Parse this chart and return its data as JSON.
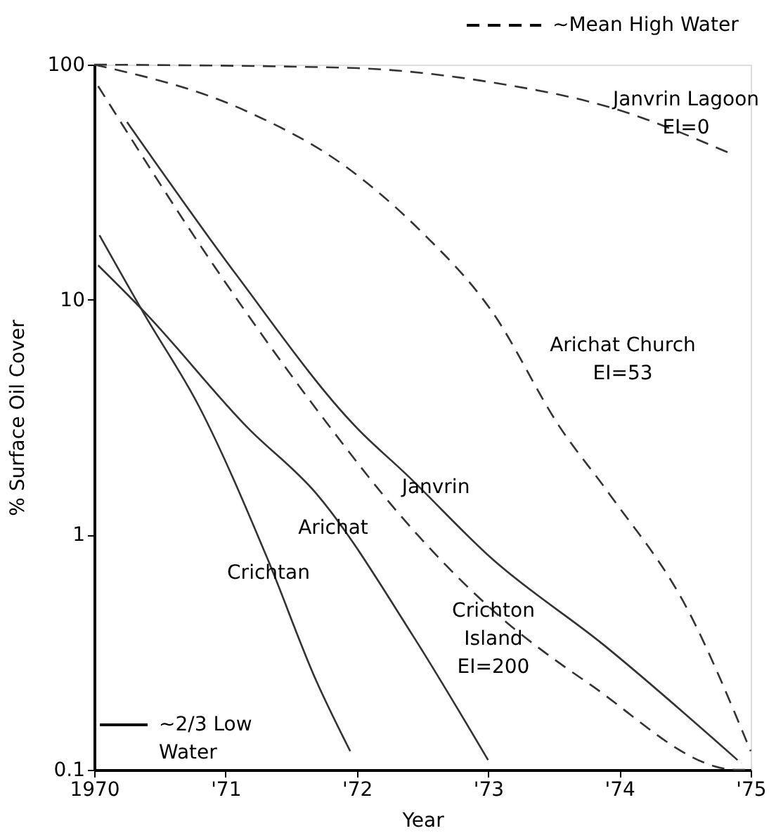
{
  "chart_data": {
    "type": "line",
    "xlabel": "Year",
    "ylabel": "% Surface Oil Cover",
    "log": "y",
    "xlim": [
      1970,
      1975
    ],
    "xticks": [
      {
        "value": 1970,
        "label": "1970"
      },
      {
        "value": 1971,
        "label": "'71"
      },
      {
        "value": 1972,
        "label": "'72"
      },
      {
        "value": 1973,
        "label": "'73"
      },
      {
        "value": 1974,
        "label": "'74"
      },
      {
        "value": 1975,
        "label": "'75"
      }
    ],
    "ylim": [
      0.1,
      100
    ],
    "yticks": [
      {
        "value": 100,
        "label": "100"
      },
      {
        "value": 10,
        "label": "10"
      },
      {
        "value": 1,
        "label": "1"
      },
      {
        "value": 0.1,
        "label": "0.1"
      }
    ],
    "grid": false,
    "marker": "none",
    "series": [
      {
        "name": "Janvrin Lagoon\nEI=0",
        "color": "#333333",
        "line_style": "dashed",
        "x": [
          1970,
          1971.91,
          1973.03,
          1973.96,
          1974.84
        ],
        "values": [
          100,
          97,
          84,
          65,
          42
        ]
      },
      {
        "name": "Arichat Church\nEI=53",
        "color": "#333333",
        "line_style": "dashed",
        "x": [
          1970,
          1971.17,
          1971.91,
          1972.47,
          1973.03,
          1973.55,
          1973.92,
          1974.52,
          1975
        ],
        "values": [
          100,
          63,
          37,
          20,
          8.9,
          2.85,
          1.5,
          0.48,
          0.12
        ]
      },
      {
        "name": "Crichton\nIsland\nEI=200",
        "color": "#333333",
        "line_style": "dashed",
        "x": [
          1970.03,
          1970.91,
          1971.8,
          1972.32,
          1973.03,
          1973.78,
          1974.9,
          1975
        ],
        "values": [
          81,
          14,
          2.85,
          1.23,
          0.48,
          0.23,
          0.1,
          0.1
        ]
      },
      {
        "name": "Janvrin",
        "color": "#333333",
        "line_style": "solid",
        "x": [
          1970.25,
          1971.09,
          1972.0,
          1972.38,
          1973.03,
          1973.88,
          1974.9
        ],
        "values": [
          57,
          12.6,
          2.85,
          1.8,
          0.79,
          0.34,
          0.11
        ]
      },
      {
        "name": "Arichat",
        "color": "#333333",
        "line_style": "solid",
        "x": [
          1970.03,
          1970.38,
          1971.17,
          1971.69,
          1972.43,
          1973.0
        ],
        "values": [
          14,
          8.9,
          2.85,
          1.5,
          0.37,
          0.11
        ]
      },
      {
        "name": "Crichtan",
        "color": "#333333",
        "line_style": "solid",
        "x": [
          1970.04,
          1970.38,
          1970.8,
          1971.32,
          1971.69,
          1971.95
        ],
        "values": [
          18.8,
          8.7,
          3.5,
          0.79,
          0.24,
          0.12
        ]
      }
    ],
    "annotations": [
      "~Mean High Water",
      "~2/3 Low\nWater"
    ]
  }
}
